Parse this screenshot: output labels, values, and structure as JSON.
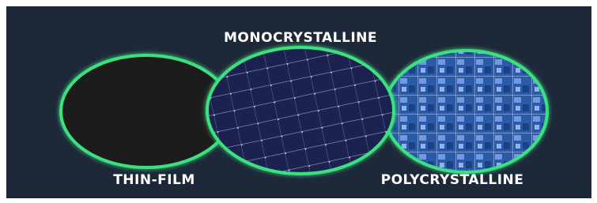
{
  "title": "MONOCRYSTALLINE",
  "panels": [
    {
      "label": "THIN-FILM"
    },
    {
      "label": "POLYCRYSTALLINE"
    }
  ]
}
